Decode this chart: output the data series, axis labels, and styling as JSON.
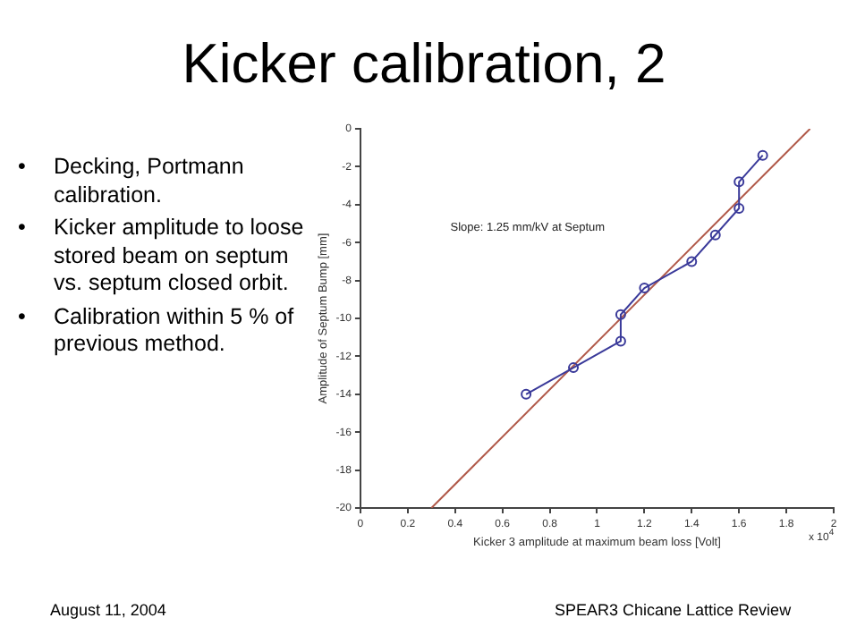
{
  "chart_data": {
    "type": "line",
    "title": "Kicker calibration, 2",
    "xlabel": "Kicker 3 amplitude at maximum beam loss [Volt]",
    "ylabel": "Amplitude of Septum Bump [mm]",
    "annotations": [
      "Slope: 1.25 mm/kV at Septum",
      "•\tDecking, Portmann calibration.",
      "•\tKicker amplitude to loose stored beam on septum vs. septum closed orbit.",
      "•\tCalibration within 5 % of previous method.",
      "x 10$^{4}$",
      "August 11, 2004",
      "SPEAR3 Chicane Lattice Review"
    ],
    "series": [
      {
        "type": "line",
        "color": "#3a3a9a",
        "marker": "circle",
        "x": [
          0.7,
          0.9,
          1.1,
          1.1,
          1.2,
          1.4,
          1.5,
          1.6,
          1.6,
          1.7
        ],
        "values": [
          -14,
          -12.6,
          -11.2,
          -9.8,
          -8.4,
          -7,
          -5.6,
          -4.2,
          -2.8,
          -1.4
        ]
      },
      {
        "type": "line",
        "color": "#b05848",
        "marker": "none",
        "x": [
          0.3,
          1.9
        ],
        "values": [
          -20,
          0
        ]
      }
    ],
    "xlim": [
      0,
      2
    ],
    "xticks": [
      0,
      0.2,
      0.4,
      0.6,
      0.8,
      1,
      1.2,
      1.4,
      1.6,
      1.8,
      2
    ],
    "ylim": [
      -20,
      0
    ],
    "yticks": [
      -20,
      -18,
      -16,
      -14,
      -12,
      -10,
      -8,
      -6,
      -4,
      -2,
      0
    ],
    "grid": false,
    "legend": false
  }
}
